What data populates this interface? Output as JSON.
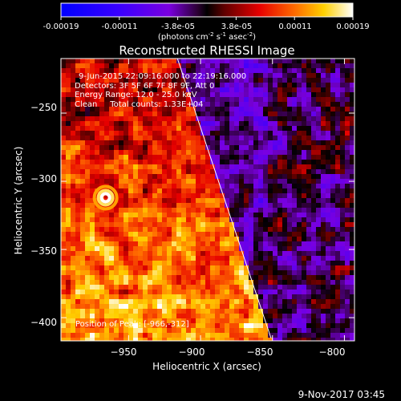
{
  "colorbar": {
    "ticks": [
      "-0.00019",
      "-0.00011",
      "-3.8e-05",
      "3.8e-05",
      "0.00011",
      "0.00019"
    ],
    "range": [
      -0.00019,
      0.00019
    ],
    "units_main": "(photons cm",
    "units_exp1": "-2",
    "units_mid": " s",
    "units_exp2": "-1",
    "units_end": " asec",
    "units_exp3": "-2",
    "units_close": ")"
  },
  "chart_data": {
    "type": "heatmap",
    "title": "Reconstructed RHESSI Image",
    "xlabel": "Heliocentric X (arcsec)",
    "ylabel": "Heliocentric Y (arcsec)",
    "xlim": [
      -997,
      -793
    ],
    "ylim": [
      -417,
      -210
    ],
    "x_ticks": [
      -950,
      -900,
      -850,
      -800
    ],
    "y_ticks": [
      -250,
      -300,
      -350,
      -400
    ],
    "x_tick_labels": [
      "−950",
      "−900",
      "−850",
      "−800"
    ],
    "y_tick_labels": [
      "−250",
      "−300",
      "−350",
      "−400"
    ],
    "colormap": "rainbow-hot (blue-purple-red-yellow-white)",
    "limb_line": [
      [
        -917,
        -207
      ],
      [
        -851,
        -415
      ]
    ],
    "annotations": [
      "9-Jun-2015 22:09:16.000 to 22:19:16.000",
      "Detectors: 3F 5F 6F 7F 8F 9F, Att 0",
      "Energy Range: 12.0 - 25.0 keV",
      "Clean     Total counts: 1.33E+04"
    ],
    "peak_label": "Position of Peak: [-966,-312]"
  },
  "footer": {
    "timestamp": "9-Nov-2017 03:45"
  }
}
